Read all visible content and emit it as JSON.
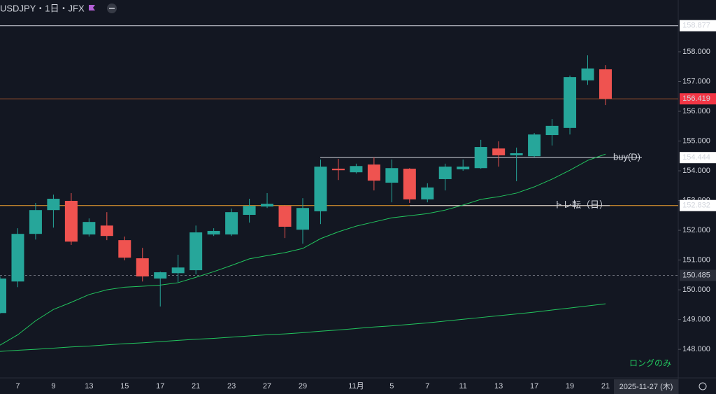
{
  "chart_data": {
    "type": "candlestick",
    "title": "USDJPY・1日・JFX",
    "categories": [
      null,
      "7",
      null,
      "9",
      null,
      "13",
      null,
      "15",
      null,
      "17",
      null,
      "21",
      null,
      "23",
      null,
      "27",
      null,
      "29",
      null,
      null,
      "11月",
      null,
      "5",
      null,
      "7",
      null,
      "11",
      null,
      "13",
      null,
      "17",
      null,
      "19",
      null,
      "21"
    ],
    "open": [
      149.22,
      150.28,
      151.88,
      152.68,
      152.99,
      151.86,
      152.16,
      151.67,
      151.06,
      150.38,
      150.56,
      150.66,
      151.86,
      151.86,
      152.52,
      152.8,
      152.82,
      152.02,
      152.64,
      154.07,
      153.95,
      154.21,
      153.6,
      154.07,
      153.04,
      153.72,
      154.05,
      154.09,
      154.75,
      154.52,
      154.49,
      155.2,
      155.44,
      157.04,
      157.41
    ],
    "high": [
      150.45,
      152.07,
      152.92,
      153.2,
      153.25,
      152.4,
      152.61,
      151.79,
      151.41,
      150.61,
      151.18,
      152.16,
      152.07,
      152.73,
      153.06,
      153.25,
      152.85,
      153.08,
      154.38,
      154.4,
      154.24,
      154.45,
      154.38,
      154.09,
      153.58,
      154.24,
      154.38,
      155.04,
      154.99,
      154.78,
      155.27,
      155.74,
      157.2,
      157.88,
      157.55
    ],
    "low": [
      149.2,
      150.09,
      151.69,
      152.09,
      151.51,
      151.79,
      151.67,
      150.99,
      150.28,
      149.44,
      150.26,
      150.52,
      151.81,
      151.81,
      152.26,
      152.75,
      151.74,
      151.55,
      152.21,
      153.69,
      153.91,
      153.34,
      152.94,
      152.92,
      152.94,
      153.34,
      154.0,
      154.07,
      154.14,
      153.65,
      154.45,
      154.85,
      155.22,
      156.89,
      156.21
    ],
    "close": [
      150.38,
      151.88,
      152.68,
      153.06,
      151.62,
      152.28,
      151.81,
      151.08,
      150.45,
      150.59,
      150.75,
      151.93,
      151.98,
      152.61,
      152.82,
      152.89,
      152.12,
      152.75,
      154.14,
      154.02,
      154.16,
      153.67,
      154.09,
      153.04,
      153.44,
      154.14,
      154.14,
      154.8,
      154.52,
      154.59,
      155.22,
      155.51,
      157.15,
      157.44,
      156.419
    ],
    "up_color": "#26a69a",
    "down_color": "#ef5350",
    "moving_averages": [
      {
        "color": "#22c55e",
        "values": [
          148.14,
          148.49,
          148.96,
          149.34,
          149.58,
          149.84,
          150.0,
          150.09,
          150.12,
          150.16,
          150.24,
          150.42,
          150.61,
          150.82,
          151.04,
          151.15,
          151.25,
          151.39,
          151.72,
          151.95,
          152.14,
          152.28,
          152.42,
          152.49,
          152.56,
          152.68,
          152.85,
          153.04,
          153.13,
          153.25,
          153.46,
          153.72,
          154.02,
          154.35,
          154.56
        ]
      },
      {
        "color": "#22c55e",
        "values": [
          147.93,
          147.97,
          148.0,
          148.04,
          148.08,
          148.11,
          148.15,
          148.19,
          148.22,
          148.26,
          148.3,
          148.34,
          148.37,
          148.41,
          148.45,
          148.49,
          148.52,
          148.56,
          148.61,
          148.65,
          148.7,
          148.75,
          148.79,
          148.84,
          148.89,
          148.95,
          149.01,
          149.07,
          149.13,
          149.19,
          149.25,
          149.32,
          149.39,
          149.46,
          149.53
        ]
      }
    ],
    "ylim": [
      147.04,
      159.74
    ],
    "yticks": [
      {
        "value": 148,
        "label": "148.000"
      },
      {
        "value": 149,
        "label": "149.000"
      },
      {
        "value": 150,
        "label": "150.000"
      },
      {
        "value": 151,
        "label": "151.000"
      },
      {
        "value": 152,
        "label": "152.000"
      },
      {
        "value": 153,
        "label": "153.000"
      },
      {
        "value": 154,
        "label": "154.000"
      },
      {
        "value": 155,
        "label": "155.000"
      },
      {
        "value": 156,
        "label": "156.000"
      },
      {
        "value": 157,
        "label": "157.000"
      },
      {
        "value": 158,
        "label": "158.000"
      }
    ],
    "hlines": [
      {
        "value": 158.877,
        "color": "#d1d4dc",
        "box": "#ffffff",
        "box_text": "#131722"
      },
      {
        "value": 156.419,
        "color": "#a0522d",
        "box": "#f23645",
        "box_text": "#ffffff"
      },
      {
        "value": 154.444,
        "color": "#d1d4dc",
        "box": "#ffffff",
        "box_text": "#131722",
        "text": "buy(D)"
      },
      {
        "value": 152.832,
        "color": "#f0a030",
        "box": "#ffffff",
        "box_text": "#131722"
      },
      {
        "value": 152.832,
        "color": "#d1d4dc",
        "text": "トレ転（日）"
      },
      {
        "value": 150.485,
        "color": "#6a6d78",
        "dashed": true,
        "box": "#2a2e39",
        "box_text": "#ffffff"
      }
    ],
    "note": "ロングのみ",
    "note_color": "#22c55e",
    "current_date": "2025-11-27 (木)"
  }
}
